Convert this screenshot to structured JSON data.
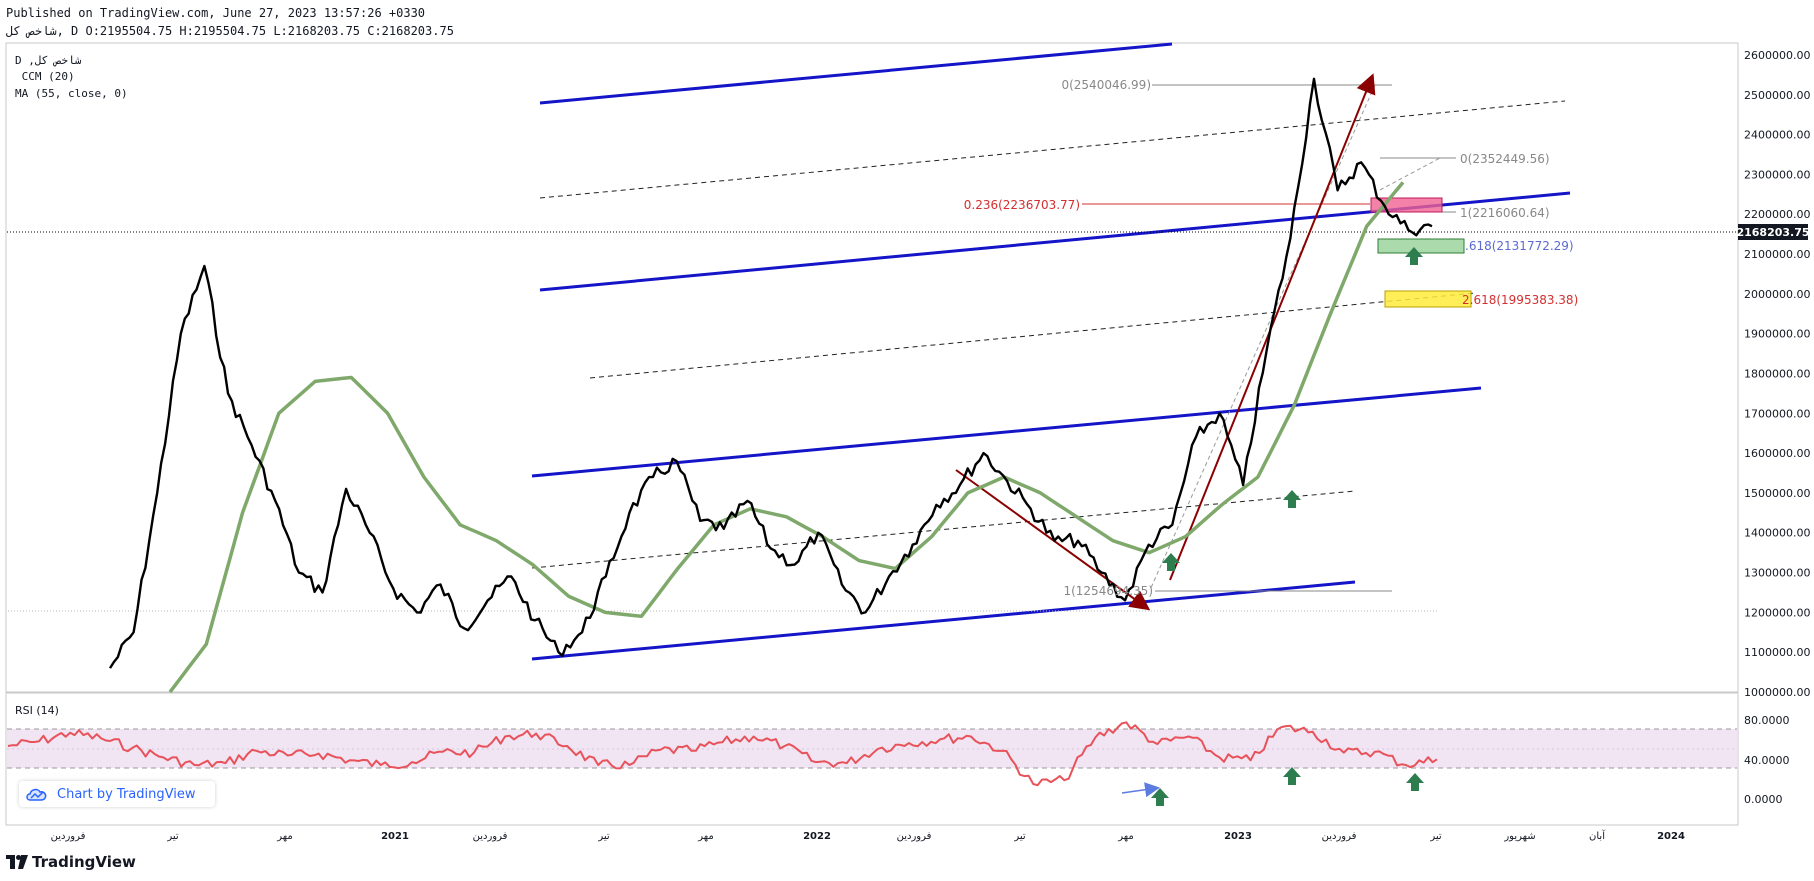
{
  "header": {
    "published": "Published on TradingView.com, June 27, 2023 13:57:26 +0330",
    "ohlc": "شاخص کل, D O:2195504.75 H:2195504.75 L:2168203.75 C:2168203.75"
  },
  "legend": {
    "line1": "D ,شاخص کل",
    "line2": " ССМ (20)",
    "line3": "MA (55, close, 0)"
  },
  "rsi_label": "RSI (14)",
  "credit": "Chart by TradingView",
  "brand": "TradingView",
  "price_axis": {
    "ticks": [
      "2600000.00",
      "2500000.00",
      "2400000.00",
      "2300000.00",
      "2200000.00",
      "2100000.00",
      "2000000.00",
      "1900000.00",
      "1800000.00",
      "1700000.00",
      "1600000.00",
      "1500000.00",
      "1400000.00",
      "1300000.00",
      "1200000.00",
      "1100000.00",
      "1000000.00"
    ],
    "last": "2168203.75"
  },
  "rsi_axis": {
    "ticks": [
      "80.0000",
      "40.0000",
      "0.0000"
    ]
  },
  "time_axis": {
    "labels": [
      "فروردین",
      "تیر",
      "مهر",
      "2021",
      "فروردین",
      "تیر",
      "مهر",
      "2022",
      "فروردین",
      "تیر",
      "مهر",
      "2023",
      "فروردین",
      "تیر",
      "شهریور",
      "آبان",
      "2024"
    ]
  },
  "fib_labels": {
    "f0a": "0(2540046.99)",
    "f0b": "0(2352449.56)",
    "f236": "0.236(2236703.77)",
    "f1a": "1(2216060.64)",
    "f1618a": ".618(2131772.29)",
    "f2618": "2.618(1995383.38)",
    "f1b": "1(1254694.35)"
  },
  "colors": {
    "price": "#000000",
    "ma": "#7fa86b",
    "rsi": "#e8525a",
    "channel": "#1414c8",
    "arrow": "#8b0000",
    "rsi_band": "#f1e4f3",
    "up_arrow": "#2e7d4f"
  },
  "chart_data": {
    "type": "line",
    "ylim": [
      1000000,
      2630000
    ],
    "series": [
      {
        "name": "شاخص کل",
        "values": [
          1060000,
          1150000,
          1500000,
          1900000,
          2070000,
          1750000,
          1620000,
          1480000,
          1300000,
          1250000,
          1510000,
          1400000,
          1260000,
          1200000,
          1270000,
          1160000,
          1230000,
          1290000,
          1180000,
          1100000,
          1150000,
          1290000,
          1450000,
          1540000,
          1580000,
          1430000,
          1410000,
          1480000,
          1360000,
          1320000,
          1400000,
          1270000,
          1200000,
          1290000,
          1370000,
          1470000,
          1520000,
          1600000,
          1530000,
          1460000,
          1380000,
          1380000,
          1300000,
          1230000,
          1370000,
          1420000,
          1640000,
          1700000,
          1520000,
          1860000,
          2140000,
          2540000,
          2260000,
          2330000,
          2220000,
          2160000,
          2170000
        ]
      },
      {
        "name": "MA (55, close, 0)",
        "values": [
          1000000,
          1120000,
          1450000,
          1700000,
          1780000,
          1790000,
          1700000,
          1540000,
          1420000,
          1380000,
          1320000,
          1240000,
          1200000,
          1190000,
          1310000,
          1420000,
          1460000,
          1440000,
          1390000,
          1330000,
          1310000,
          1390000,
          1500000,
          1540000,
          1500000,
          1440000,
          1380000,
          1350000,
          1390000,
          1470000,
          1540000,
          1720000,
          1950000,
          2170000,
          2280000
        ]
      },
      {
        "name": "RSI (14)",
        "values": [
          60,
          65,
          74,
          68,
          58,
          48,
          40,
          42,
          55,
          50,
          52,
          45,
          40,
          43,
          54,
          53,
          70,
          73,
          60,
          40,
          40,
          56,
          55,
          64,
          70,
          60,
          43,
          42,
          57,
          63,
          67,
          70,
          55,
          20,
          24,
          69,
          85,
          62,
          70,
          48,
          45,
          80,
          75,
          53,
          54,
          40,
          46
        ]
      }
    ]
  }
}
